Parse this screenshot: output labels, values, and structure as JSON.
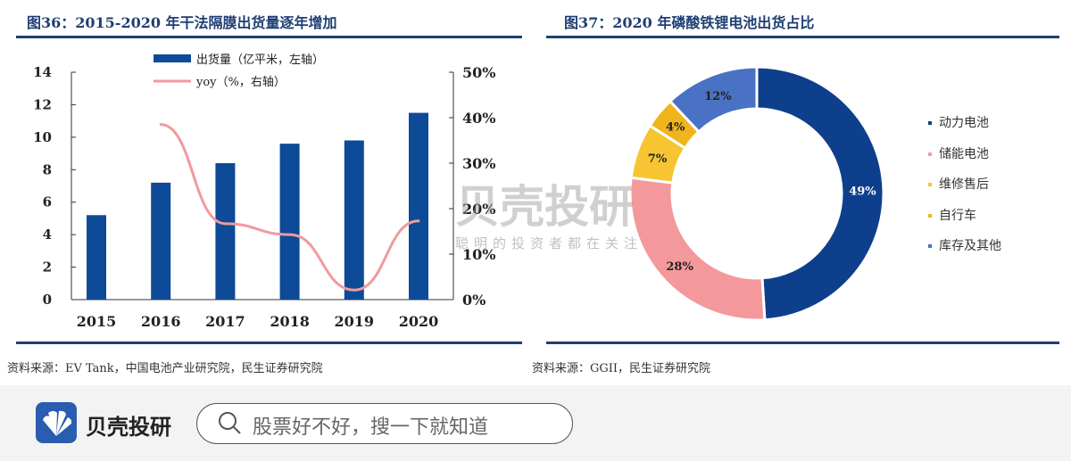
{
  "chart_data": [
    {
      "type": "bar+line",
      "title": "图36：2015-2020 年干法隔膜出货量逐年增加",
      "categories": [
        "2015",
        "2016",
        "2017",
        "2018",
        "2019",
        "2020"
      ],
      "series": [
        {
          "name": "出货量（亿平米，左轴）",
          "type": "bar",
          "axis": "left",
          "color": "#0d4a97",
          "values": [
            5.2,
            7.2,
            8.4,
            9.6,
            9.8,
            11.5
          ]
        },
        {
          "name": "yoy（%，右轴）",
          "type": "line",
          "axis": "right",
          "color": "#f19a9e",
          "values": [
            null,
            38.5,
            16.7,
            14.3,
            2.1,
            17.3
          ]
        }
      ],
      "ylim_left": [
        0,
        14
      ],
      "yticks_left": [
        "0",
        "2",
        "4",
        "6",
        "8",
        "10",
        "12",
        "14"
      ],
      "ylim_right": [
        0,
        50
      ],
      "yticks_right": [
        "0%",
        "10%",
        "20%",
        "30%",
        "40%",
        "50%"
      ],
      "legend": "top-center",
      "source": "资料来源：EV Tank，中国电池产业研究院，民生证券研究院"
    },
    {
      "type": "pie",
      "title": "图37：2020 年磷酸铁锂电池出货占比",
      "donut": true,
      "labels": [
        "动力电池",
        "储能电池",
        "维修售后",
        "自行车",
        "库存及其他"
      ],
      "values": [
        49,
        28,
        7,
        4,
        12
      ],
      "value_labels": [
        "49%",
        "28%",
        "7%",
        "4%",
        "12%"
      ],
      "colors": [
        "#0d3f8c",
        "#f4999b",
        "#f6c531",
        "#f0b41c",
        "#4a72c4"
      ],
      "legend": "right",
      "source": "资料来源：GGII，民生证券研究院"
    }
  ],
  "watermark": {
    "name": "贝壳投研",
    "slogan": "聪明的投资者都在关注"
  },
  "footer": {
    "brand": "贝壳投研",
    "search_placeholder": "股票好不好，搜一下就知道"
  }
}
